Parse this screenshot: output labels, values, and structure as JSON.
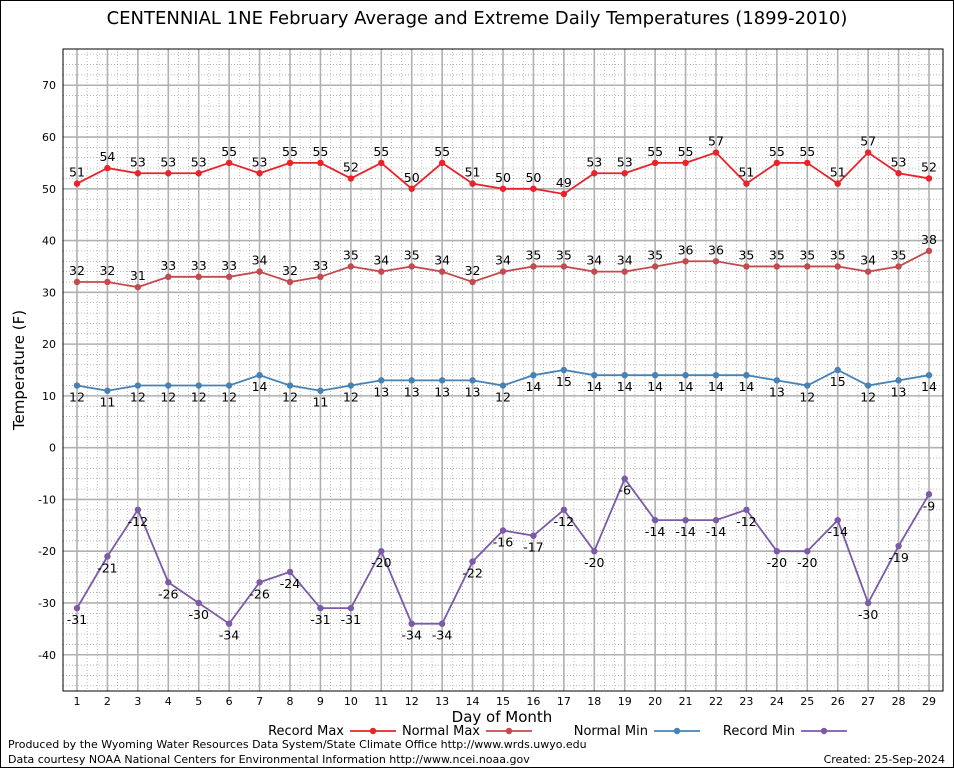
{
  "chart_data": {
    "type": "line",
    "title": "CENTENNIAL 1NE February Average and Extreme Daily Temperatures (1899-2010)",
    "xlabel": "Day of Month",
    "ylabel": "Temperature (F)",
    "ylim": [
      -47,
      77
    ],
    "yticks": [
      -40,
      -30,
      -20,
      -10,
      0,
      10,
      20,
      30,
      40,
      50,
      60,
      70
    ],
    "grid": true,
    "legend_position": "bottom",
    "x": [
      1,
      2,
      3,
      4,
      5,
      6,
      7,
      8,
      9,
      10,
      11,
      12,
      13,
      14,
      15,
      16,
      17,
      18,
      19,
      20,
      21,
      22,
      23,
      24,
      25,
      26,
      27,
      28,
      29
    ],
    "series": [
      {
        "name": "Record Max",
        "color": "#e8232a",
        "label_pos": "above",
        "values": [
          51,
          54,
          53,
          53,
          53,
          55,
          53,
          55,
          55,
          52,
          55,
          50,
          55,
          51,
          50,
          50,
          49,
          53,
          53,
          55,
          55,
          57,
          51,
          55,
          55,
          51,
          57,
          53,
          52
        ]
      },
      {
        "name": "Normal Max",
        "color": "#c24b50",
        "label_pos": "above",
        "values": [
          32,
          32,
          31,
          33,
          33,
          33,
          34,
          32,
          33,
          35,
          34,
          35,
          34,
          32,
          34,
          35,
          35,
          34,
          34,
          35,
          36,
          36,
          35,
          35,
          35,
          35,
          34,
          35,
          38
        ]
      },
      {
        "name": "Normal Min",
        "color": "#4682b4",
        "label_pos": "below",
        "values": [
          12,
          11,
          12,
          12,
          12,
          12,
          14,
          12,
          11,
          12,
          13,
          13,
          13,
          13,
          12,
          14,
          15,
          14,
          14,
          14,
          14,
          14,
          14,
          13,
          12,
          15,
          12,
          13,
          14
        ]
      },
      {
        "name": "Record Min",
        "color": "#7b5aa6",
        "label_pos": "below",
        "values": [
          -31,
          -21,
          -12,
          -26,
          -30,
          -34,
          -26,
          -24,
          -31,
          -31,
          -20,
          -34,
          -34,
          -22,
          -16,
          -17,
          -12,
          -20,
          -6,
          -14,
          -14,
          -14,
          -12,
          -20,
          -20,
          -14,
          -30,
          -19,
          -9
        ]
      }
    ]
  },
  "footer": {
    "left_line1": "Produced by the Wyoming Water Resources Data System/State Climate Office http://www.wrds.uwyo.edu",
    "left_line2": "Data courtesy NOAA National Centers for Environmental Information http://www.ncei.noaa.gov",
    "created": "Created:  25-Sep-2024"
  }
}
